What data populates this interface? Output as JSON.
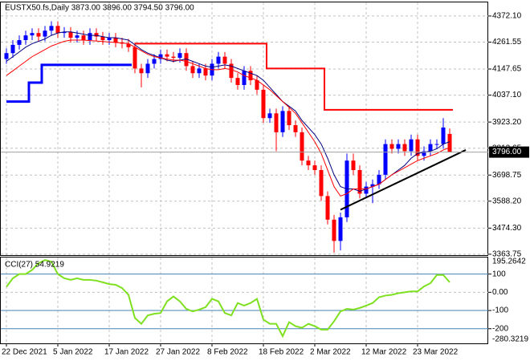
{
  "chart_data": [
    {
      "type": "candlestick",
      "title": "EUSTX50.fs,Daily  3873.00 3896.00 3794.50 3796.00",
      "categories": [
        "22 Dec 2021",
        null,
        null,
        null,
        null,
        null,
        null,
        null,
        "5 Jan 2022",
        null,
        null,
        null,
        null,
        null,
        null,
        null,
        "17 Jan 2022",
        null,
        null,
        null,
        null,
        null,
        null,
        null,
        "27 Jan 2022",
        null,
        null,
        null,
        null,
        null,
        null,
        null,
        "8 Feb 2022",
        null,
        null,
        null,
        null,
        null,
        null,
        null,
        "18 Feb 2022",
        null,
        null,
        null,
        null,
        null,
        null,
        null,
        "2 Mar 2022",
        null,
        null,
        null,
        null,
        null,
        null,
        null,
        "12 Mar 2022",
        null,
        null,
        null,
        null,
        null,
        null,
        null,
        "23 Mar 2022",
        null,
        null,
        null,
        null,
        null
      ],
      "open": [
        4190,
        4215,
        4250,
        4270,
        4290,
        4300,
        4285,
        4310,
        4330,
        4300,
        4305,
        4280,
        4290,
        4270,
        4300,
        4285,
        4270,
        4280,
        4260,
        4255,
        4240,
        4150,
        4130,
        4170,
        4190,
        4210,
        4200,
        4195,
        4215,
        4160,
        4130,
        4150,
        4120,
        4170,
        4200,
        4170,
        4110,
        4080,
        4140,
        4100,
        4060,
        3940,
        3960,
        3880,
        3970,
        3910,
        3880,
        3760,
        3740,
        3720,
        3610,
        3510,
        3420,
        3520,
        3760,
        3720,
        3620,
        3650,
        3660,
        3700,
        3830,
        3810,
        3830,
        3800,
        3850,
        3780,
        3800,
        3830,
        3830,
        3873
      ],
      "high": [
        4235,
        4270,
        4290,
        4310,
        4320,
        4320,
        4330,
        4350,
        4350,
        4325,
        4325,
        4310,
        4310,
        4320,
        4320,
        4305,
        4300,
        4300,
        4280,
        4275,
        4260,
        4170,
        4190,
        4210,
        4230,
        4230,
        4220,
        4235,
        4235,
        4180,
        4170,
        4170,
        4190,
        4220,
        4220,
        4190,
        4130,
        4160,
        4160,
        4120,
        4080,
        3980,
        3980,
        3990,
        3990,
        3930,
        3900,
        3780,
        3760,
        3740,
        3630,
        3530,
        3540,
        3790,
        3790,
        3740,
        3670,
        3680,
        3720,
        3850,
        3850,
        3850,
        3850,
        3870,
        3870,
        3820,
        3850,
        3850,
        3940,
        3896
      ],
      "low": [
        4170,
        4195,
        4230,
        4250,
        4270,
        4265,
        4265,
        4290,
        4280,
        4280,
        4260,
        4260,
        4250,
        4250,
        4265,
        4250,
        4250,
        4240,
        4235,
        4220,
        4130,
        4070,
        4110,
        4150,
        4170,
        4180,
        4175,
        4175,
        4140,
        4110,
        4110,
        4100,
        4100,
        4150,
        4150,
        4090,
        4060,
        4060,
        4080,
        4040,
        3920,
        3920,
        3800,
        3860,
        3890,
        3860,
        3740,
        3720,
        3700,
        3590,
        3490,
        3370,
        3380,
        3500,
        3700,
        3600,
        3600,
        3580,
        3640,
        3680,
        3790,
        3790,
        3780,
        3780,
        3760,
        3760,
        3780,
        3810,
        3810,
        3794.5
      ],
      "close": [
        4215,
        4250,
        4270,
        4290,
        4300,
        4285,
        4310,
        4330,
        4300,
        4305,
        4280,
        4290,
        4270,
        4300,
        4285,
        4270,
        4280,
        4260,
        4255,
        4240,
        4150,
        4130,
        4170,
        4190,
        4210,
        4200,
        4195,
        4215,
        4160,
        4130,
        4150,
        4120,
        4170,
        4200,
        4170,
        4110,
        4080,
        4140,
        4100,
        4060,
        3940,
        3960,
        3880,
        3970,
        3910,
        3880,
        3760,
        3740,
        3720,
        3610,
        3510,
        3420,
        3520,
        3760,
        3720,
        3620,
        3650,
        3660,
        3700,
        3830,
        3810,
        3830,
        3800,
        3850,
        3780,
        3800,
        3830,
        3830,
        3900,
        3796
      ],
      "up_color": "#0000ff",
      "down_color": "#ff0000",
      "overlays": [
        {
          "color": "#000080",
          "width": 1,
          "step": false,
          "values": [
            4180,
            4200,
            4220,
            4240,
            4255,
            4265,
            4275,
            4290,
            4300,
            4305,
            4305,
            4300,
            4295,
            4290,
            4290,
            4285,
            4280,
            4280,
            4275,
            4270,
            4250,
            4230,
            4215,
            4205,
            4195,
            4185,
            4180,
            4185,
            4190,
            4180,
            4170,
            4160,
            4155,
            4160,
            4165,
            4160,
            4150,
            4140,
            4130,
            4120,
            4100,
            4070,
            4040,
            4010,
            3990,
            3970,
            3930,
            3900,
            3870,
            3830,
            3770,
            3700,
            3650,
            3640,
            3640,
            3630,
            3640,
            3650,
            3660,
            3680,
            3700,
            3720,
            3740,
            3770,
            3790,
            3795,
            3800,
            3810,
            3830,
            3840
          ]
        },
        {
          "color": "#ff0000",
          "width": 1,
          "step": false,
          "values": [
            4120,
            4140,
            4160,
            4180,
            4200,
            4215,
            4230,
            4245,
            4255,
            4265,
            4270,
            4270,
            4270,
            4268,
            4266,
            4264,
            4262,
            4260,
            4258,
            4255,
            4240,
            4225,
            4210,
            4200,
            4195,
            4190,
            4185,
            4185,
            4180,
            4170,
            4160,
            4150,
            4145,
            4145,
            4150,
            4145,
            4135,
            4120,
            4110,
            4100,
            4080,
            4060,
            4035,
            4010,
            3985,
            3960,
            3920,
            3880,
            3840,
            3790,
            3720,
            3650,
            3610,
            3620,
            3640,
            3640,
            3640,
            3650,
            3660,
            3680,
            3700,
            3715,
            3730,
            3745,
            3760,
            3770,
            3780,
            3790,
            3805,
            3815
          ]
        },
        {
          "color": "#0000ff",
          "width": 3,
          "step": true,
          "values": [
            4010,
            4010,
            4010,
            4010,
            4090,
            4090,
            4165,
            4165,
            4165,
            4165,
            4165,
            4165,
            4165,
            4165,
            4165,
            4165,
            4165,
            4165,
            4165,
            4165,
            null,
            null,
            null,
            null,
            null,
            null,
            null,
            null,
            null,
            null,
            null,
            null,
            null,
            null,
            null,
            null,
            null,
            null,
            null,
            null,
            null,
            null,
            null,
            null,
            null,
            null,
            null,
            null,
            null,
            null,
            null,
            null,
            null,
            null,
            null,
            null,
            null,
            null,
            null,
            null,
            null,
            null,
            null,
            null,
            null,
            null,
            null,
            null,
            null,
            null
          ]
        },
        {
          "color": "#ff0000",
          "width": 2,
          "step": true,
          "values": [
            null,
            null,
            null,
            null,
            null,
            null,
            null,
            null,
            null,
            null,
            null,
            null,
            null,
            null,
            null,
            null,
            null,
            null,
            null,
            null,
            4255,
            4255,
            4255,
            4255,
            4255,
            4255,
            4255,
            4255,
            4255,
            4255,
            4255,
            4255,
            4255,
            4255,
            4255,
            4255,
            4255,
            4255,
            4255,
            4255,
            4255,
            4150,
            4150,
            4150,
            4150,
            4150,
            4150,
            4150,
            4150,
            4150,
            3975,
            3975,
            3975,
            3975,
            3975,
            3975,
            3975,
            3975,
            3975,
            3975,
            3975,
            3975,
            3975,
            3975,
            3975,
            3975,
            3975,
            3975,
            3975,
            3975
          ]
        }
      ],
      "trendline": {
        "x": [
          52,
          71.5
        ],
        "values": [
          3552,
          3805
        ],
        "color": "#000000"
      },
      "price_marker": {
        "value": 3796,
        "label": "3796.00"
      },
      "ylim": [
        3360,
        4433
      ],
      "yticks": [
        {
          "value": 4372.1,
          "label": "4372.10"
        },
        {
          "value": 4261.55,
          "label": "4261.55"
        },
        {
          "value": 4147.65,
          "label": "4147.65"
        },
        {
          "value": 4037.1,
          "label": "4037.10"
        },
        {
          "value": 3923.2,
          "label": "3923.20"
        },
        {
          "value": 3812.65,
          "label": "3812.65"
        },
        {
          "value": 3698.75,
          "label": "3698.75"
        },
        {
          "value": 3588.2,
          "label": "3588.20"
        },
        {
          "value": 3474.3,
          "label": "3474.30"
        },
        {
          "value": 3363.75,
          "label": "3363.75"
        }
      ],
      "grid": true
    },
    {
      "type": "line",
      "title": "CCI(27) 54.9219",
      "color": "#7fe020",
      "values": [
        30,
        77,
        100,
        100,
        123,
        159,
        177,
        168,
        100,
        77,
        68,
        77,
        68,
        68,
        64,
        55,
        45,
        41,
        23,
        -14,
        -141,
        -173,
        -127,
        -118,
        -114,
        -50,
        -23,
        -50,
        -91,
        -105,
        -95,
        -82,
        -36,
        -50,
        -114,
        -127,
        -59,
        -73,
        -59,
        -36,
        -150,
        -173,
        -173,
        -241,
        -164,
        -186,
        -195,
        -173,
        -186,
        -205,
        -205,
        -159,
        -105,
        -91,
        -95,
        -86,
        -73,
        -59,
        -27,
        -18,
        -14,
        -5,
        0,
        5,
        5,
        32,
        50,
        95,
        95,
        54.9219
      ],
      "ylim": [
        -280.3219,
        195.2642
      ],
      "yticks": [
        100,
        {
          "value": 0,
          "label": "0.00"
        },
        -100,
        -200
      ],
      "level_lines": [
        100,
        -100,
        -200
      ],
      "grid": true
    }
  ]
}
